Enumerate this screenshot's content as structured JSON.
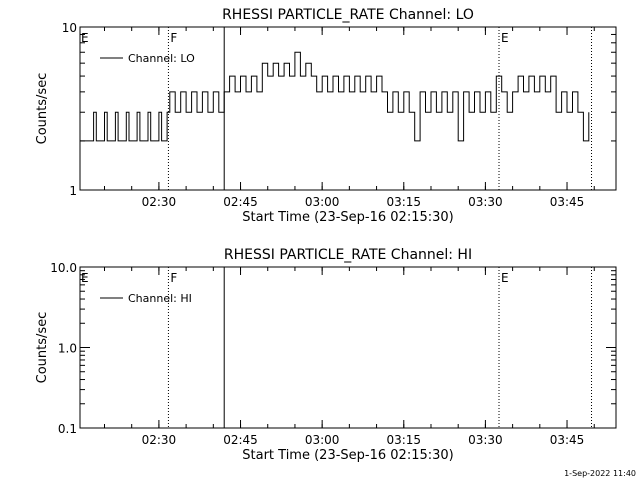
{
  "footer": {
    "timestamp": "1-Sep-2022 11:40"
  },
  "chart_data": [
    {
      "type": "line",
      "title": "RHESSI PARTICLE_RATE Channel: LO",
      "xlabel": "Start Time (23-Sep-16 02:15:30)",
      "ylabel": "Counts/sec",
      "yscale": "log",
      "ylim": [
        1,
        10
      ],
      "ytick_labels": [
        "1",
        "10"
      ],
      "xlim": [
        "02:15:30",
        "03:54:00"
      ],
      "xtick_labels": [
        "02:30",
        "02:45",
        "03:00",
        "03:15",
        "03:30",
        "03:45"
      ],
      "legend": {
        "label": "Channel: LO",
        "position": "top-left"
      },
      "markers": [
        {
          "time": "02:31:45",
          "label": "F",
          "style": "dotted"
        },
        {
          "time": "02:42:00",
          "label": "",
          "style": "solid"
        },
        {
          "time": "03:32:30",
          "label": "E",
          "style": "dotted"
        },
        {
          "time": "03:49:30",
          "label": "",
          "style": "dotted"
        }
      ],
      "edge_labels": [
        {
          "text": "E",
          "position": "left-edge"
        }
      ],
      "series": [
        {
          "x": [
            "02:15:30",
            "02:18:00",
            "02:18:30",
            "02:20:00",
            "02:20:30",
            "02:22:00",
            "02:22:30",
            "02:24:00",
            "02:24:30",
            "02:26:00",
            "02:26:30",
            "02:28:00",
            "02:28:30",
            "02:30:00",
            "02:30:30",
            "02:31:30",
            "02:32:00",
            "02:33:00",
            "02:34:00",
            "02:35:00",
            "02:36:00",
            "02:37:00",
            "02:38:00",
            "02:39:00",
            "02:40:00",
            "02:41:00",
            "02:42:00",
            "02:43:00",
            "02:44:00",
            "02:45:00",
            "02:46:00",
            "02:47:00",
            "02:48:00",
            "02:49:00",
            "02:50:00",
            "02:51:00",
            "02:52:00",
            "02:53:00",
            "02:54:00",
            "02:55:00",
            "02:56:00",
            "02:57:00",
            "02:58:00",
            "02:59:00",
            "03:00:00",
            "03:01:00",
            "03:02:00",
            "03:03:00",
            "03:04:00",
            "03:05:00",
            "03:06:00",
            "03:07:00",
            "03:08:00",
            "03:09:00",
            "03:10:00",
            "03:11:00",
            "03:12:00",
            "03:13:00",
            "03:14:00",
            "03:15:00",
            "03:16:00",
            "03:17:00",
            "03:18:00",
            "03:19:00",
            "03:20:00",
            "03:21:00",
            "03:22:00",
            "03:23:00",
            "03:24:00",
            "03:25:00",
            "03:26:00",
            "03:27:00",
            "03:28:00",
            "03:29:00",
            "03:30:00",
            "03:31:00",
            "03:32:00",
            "03:33:00",
            "03:34:00",
            "03:35:00",
            "03:36:00",
            "03:37:00",
            "03:38:00",
            "03:39:00",
            "03:40:00",
            "03:41:00",
            "03:42:00",
            "03:43:00",
            "03:44:00",
            "03:45:00",
            "03:46:00",
            "03:47:00",
            "03:48:00",
            "03:49:00"
          ],
          "y": [
            2,
            3,
            2,
            3,
            2,
            3,
            2,
            3,
            2,
            3,
            2,
            3,
            2,
            3,
            2,
            3,
            4,
            3,
            4,
            3,
            4,
            3,
            4,
            3,
            4,
            3,
            4,
            5,
            4,
            5,
            4,
            5,
            4,
            6,
            5,
            6,
            5,
            6,
            5,
            7,
            5,
            6,
            5,
            4,
            5,
            4,
            5,
            4,
            5,
            4,
            5,
            4,
            5,
            4,
            5,
            4,
            3,
            4,
            3,
            4,
            3,
            2,
            4,
            3,
            4,
            3,
            4,
            3,
            4,
            2,
            4,
            3,
            4,
            3,
            4,
            3,
            5,
            4,
            3,
            4,
            5,
            4,
            5,
            4,
            5,
            4,
            5,
            3,
            4,
            3,
            4,
            3,
            2,
            3
          ]
        }
      ]
    },
    {
      "type": "line",
      "title": "RHESSI PARTICLE_RATE Channel: HI",
      "xlabel": "Start Time (23-Sep-16 02:15:30)",
      "ylabel": "Counts/sec",
      "yscale": "log",
      "ylim": [
        0.1,
        10
      ],
      "ytick_labels": [
        "0.1",
        "1.0",
        "10.0"
      ],
      "xlim": [
        "02:15:30",
        "03:54:00"
      ],
      "xtick_labels": [
        "02:30",
        "02:45",
        "03:00",
        "03:15",
        "03:30",
        "03:45"
      ],
      "legend": {
        "label": "Channel: HI",
        "position": "top-left"
      },
      "markers": [
        {
          "time": "02:31:45",
          "label": "F",
          "style": "dotted"
        },
        {
          "time": "02:42:00",
          "label": "",
          "style": "solid"
        },
        {
          "time": "03:32:30",
          "label": "E",
          "style": "dotted"
        },
        {
          "time": "03:49:30",
          "label": "",
          "style": "dotted"
        }
      ],
      "edge_labels": [
        {
          "text": "E",
          "position": "left-edge"
        }
      ],
      "series": [
        {
          "x": [],
          "y": []
        }
      ]
    }
  ]
}
